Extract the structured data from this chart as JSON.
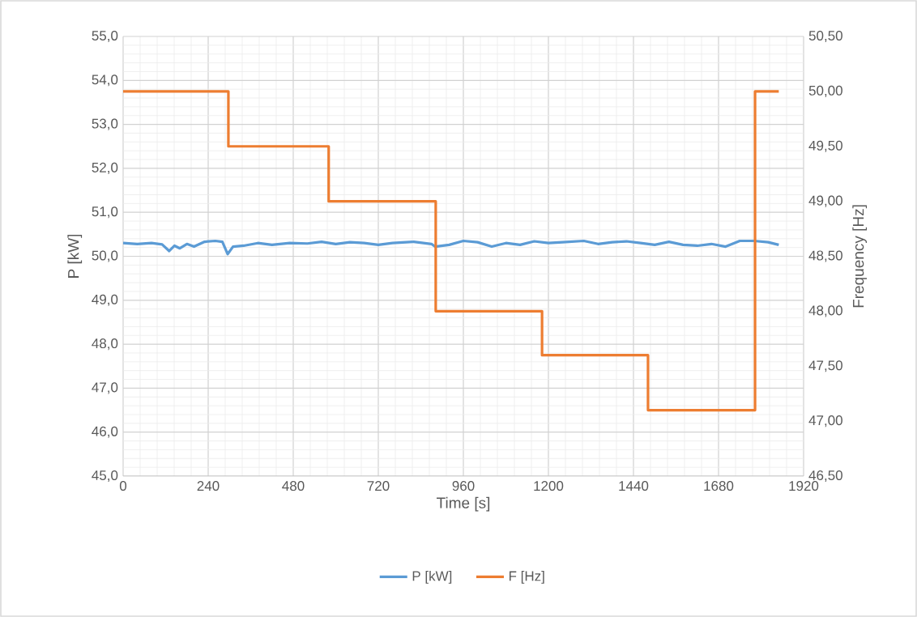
{
  "chart_data": {
    "type": "line",
    "xlabel": "Time [s]",
    "ylabel": "P [kW]",
    "y2label": "Frequency [Hz]",
    "xlim": [
      0,
      1920
    ],
    "xticks": [
      0,
      240,
      480,
      720,
      960,
      1200,
      1440,
      1680,
      1920
    ],
    "ylim": [
      45,
      55
    ],
    "yticks": [
      {
        "value": 45,
        "label": "45,0"
      },
      {
        "value": 46,
        "label": "46,0"
      },
      {
        "value": 47,
        "label": "47,0"
      },
      {
        "value": 48,
        "label": "48,0"
      },
      {
        "value": 49,
        "label": "49,0"
      },
      {
        "value": 50,
        "label": "50,0"
      },
      {
        "value": 51,
        "label": "51,0"
      },
      {
        "value": 52,
        "label": "52,0"
      },
      {
        "value": 53,
        "label": "53,0"
      },
      {
        "value": 54,
        "label": "54,0"
      },
      {
        "value": 55,
        "label": "55,0"
      }
    ],
    "y2lim": [
      46.5,
      50.5
    ],
    "y2ticks": [
      {
        "value": 46.5,
        "label": "46,50"
      },
      {
        "value": 47,
        "label": "47,00"
      },
      {
        "value": 47.5,
        "label": "47,50"
      },
      {
        "value": 48,
        "label": "48,00"
      },
      {
        "value": 48.5,
        "label": "48,50"
      },
      {
        "value": 49,
        "label": "49,00"
      },
      {
        "value": 49.5,
        "label": "49,50"
      },
      {
        "value": 50,
        "label": "50,00"
      },
      {
        "value": 50.5,
        "label": "50,50"
      }
    ],
    "grid": true,
    "legend": "bottom",
    "marker": "none",
    "series": [
      {
        "name": "P [kW]",
        "color": "#5b9bd5",
        "x": [
          0,
          40,
          80,
          110,
          130,
          145,
          160,
          180,
          200,
          230,
          260,
          280,
          295,
          310,
          340,
          380,
          420,
          470,
          520,
          560,
          600,
          640,
          680,
          720,
          760,
          820,
          870,
          880,
          920,
          960,
          1000,
          1040,
          1080,
          1120,
          1160,
          1200,
          1240,
          1300,
          1340,
          1380,
          1420,
          1460,
          1500,
          1540,
          1580,
          1620,
          1660,
          1700,
          1740,
          1780,
          1820,
          1850
        ],
        "values": [
          50.3,
          50.28,
          50.3,
          50.27,
          50.12,
          50.24,
          50.18,
          50.28,
          50.22,
          50.33,
          50.35,
          50.33,
          50.05,
          50.22,
          50.24,
          50.3,
          50.26,
          50.3,
          50.29,
          50.33,
          50.28,
          50.32,
          50.3,
          50.26,
          50.3,
          50.33,
          50.28,
          50.22,
          50.26,
          50.35,
          50.32,
          50.22,
          50.3,
          50.26,
          50.34,
          50.3,
          50.32,
          50.35,
          50.28,
          50.32,
          50.34,
          50.3,
          50.26,
          50.33,
          50.26,
          50.24,
          50.28,
          50.22,
          50.35,
          50.35,
          50.32,
          50.26
        ]
      },
      {
        "name": "F [Hz]",
        "type": "step",
        "axis": "y2",
        "color": "#ed7d31",
        "x": [
          0,
          297,
          580,
          882,
          1182,
          1481,
          1783,
          1850
        ],
        "values": [
          50,
          49.5,
          49,
          48,
          47.6,
          47.1,
          50,
          50
        ]
      }
    ]
  }
}
